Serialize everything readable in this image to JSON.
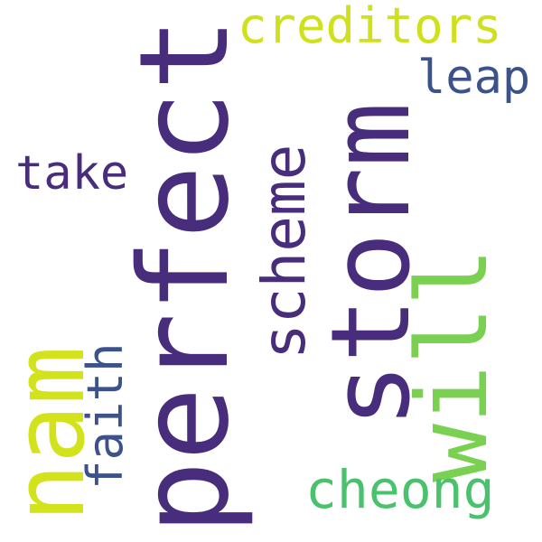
{
  "words": {
    "perfect": {
      "text": "perfect",
      "color": "#472d7b"
    },
    "storm": {
      "text": "storm",
      "color": "#472d7b"
    },
    "nam": {
      "text": "nam",
      "color": "#d2e21b"
    },
    "will": {
      "text": "will",
      "color": "#7ad151"
    },
    "creditors": {
      "text": "creditors",
      "color": "#cfe11c"
    },
    "leap": {
      "text": "leap",
      "color": "#3b528b"
    },
    "take": {
      "text": "take",
      "color": "#472d7b"
    },
    "scheme": {
      "text": "scheme",
      "color": "#472d7b"
    },
    "faith": {
      "text": "faith",
      "color": "#3b528b"
    },
    "cheong": {
      "text": "cheong",
      "color": "#4ac16d"
    }
  }
}
